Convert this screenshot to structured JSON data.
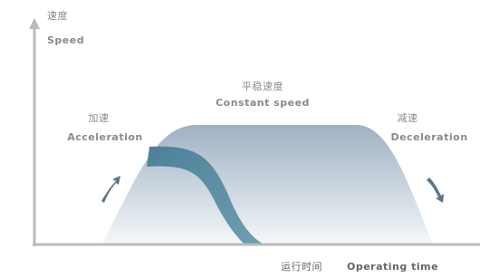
{
  "y_axis": {
    "label_zh": "速度",
    "label_en": "Speed"
  },
  "phases": [
    {
      "label_zh": "加速",
      "label_en": "Acceleration"
    },
    {
      "label_zh": "平稳速度",
      "label_en": "Constant speed"
    },
    {
      "label_zh": "减速",
      "label_en": "Deceleration"
    }
  ],
  "x_axis": {
    "label_zh": "运行时间",
    "label_en": "Operating time"
  }
}
